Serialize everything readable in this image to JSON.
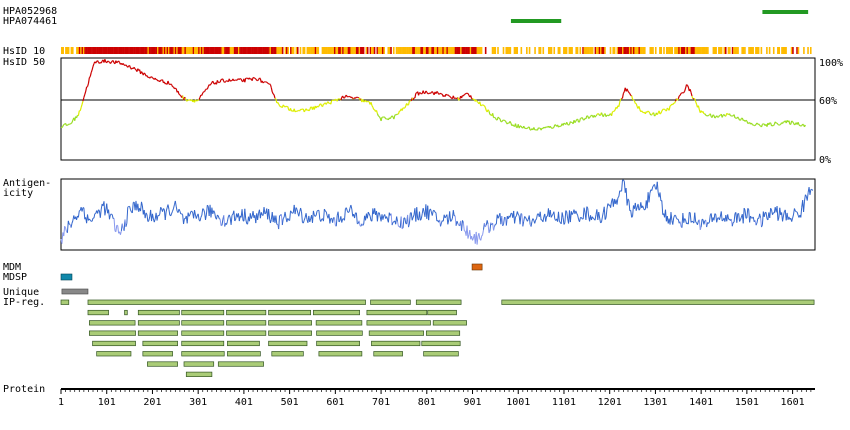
{
  "labels": {
    "antibody_1": "HPA052968",
    "antibody_2": "HPA074461",
    "hsid10": "HsID 10",
    "hsid50": "HsID 50",
    "antigenicity_1": "Antigen-",
    "antigenicity_2": "icity",
    "mdm": "MDM",
    "mdsp": "MDSP",
    "unique": "Unique",
    "ipreg": "IP-reg.",
    "protein": "Protein"
  },
  "colors": {
    "antibody": "#229922",
    "hsid_high": "#cc0000",
    "hsid_mid": "#ddee00",
    "hsid_low": "#99dd22",
    "hsid_orange": "#ffbb00",
    "antigenicity": "#3366cc",
    "antigenicity_light": "#8899ee",
    "mdm": "#dd6611",
    "mdsp": "#1188aa",
    "unique": "#888888",
    "ipreg_fill": "#aacc77",
    "ipreg_stroke": "#335522"
  },
  "chart_data": {
    "type": "line",
    "protein_length": 1650,
    "x_ticks": [
      1,
      101,
      201,
      301,
      401,
      501,
      601,
      701,
      801,
      901,
      1001,
      1101,
      1201,
      1301,
      1401,
      1501,
      1601
    ],
    "hsid_ylim": [
      0,
      100
    ],
    "hsid_threshold": 60,
    "hsid_axis_labels": [
      "100%",
      "60%",
      "0%"
    ],
    "antibody_regions": [
      {
        "name": "HPA052968",
        "start": 1535,
        "end": 1635
      },
      {
        "name": "HPA074461",
        "start": 985,
        "end": 1095
      }
    ],
    "hsid50_profile": [
      [
        1,
        33
      ],
      [
        20,
        35
      ],
      [
        40,
        45
      ],
      [
        60,
        75
      ],
      [
        75,
        96
      ],
      [
        100,
        97
      ],
      [
        130,
        95
      ],
      [
        160,
        90
      ],
      [
        200,
        80
      ],
      [
        240,
        75
      ],
      [
        260,
        65
      ],
      [
        270,
        60
      ],
      [
        300,
        58
      ],
      [
        330,
        75
      ],
      [
        360,
        78
      ],
      [
        400,
        78
      ],
      [
        430,
        80
      ],
      [
        460,
        72
      ],
      [
        475,
        55
      ],
      [
        500,
        50
      ],
      [
        530,
        48
      ],
      [
        560,
        52
      ],
      [
        580,
        55
      ],
      [
        600,
        58
      ],
      [
        620,
        62
      ],
      [
        650,
        60
      ],
      [
        680,
        55
      ],
      [
        700,
        40
      ],
      [
        730,
        42
      ],
      [
        760,
        55
      ],
      [
        780,
        65
      ],
      [
        800,
        67
      ],
      [
        830,
        65
      ],
      [
        850,
        62
      ],
      [
        870,
        60
      ],
      [
        890,
        65
      ],
      [
        910,
        58
      ],
      [
        930,
        50
      ],
      [
        950,
        42
      ],
      [
        970,
        38
      ],
      [
        990,
        35
      ],
      [
        1010,
        32
      ],
      [
        1040,
        30
      ],
      [
        1070,
        32
      ],
      [
        1100,
        35
      ],
      [
        1130,
        38
      ],
      [
        1160,
        43
      ],
      [
        1180,
        45
      ],
      [
        1200,
        43
      ],
      [
        1220,
        52
      ],
      [
        1235,
        70
      ],
      [
        1250,
        62
      ],
      [
        1270,
        47
      ],
      [
        1300,
        45
      ],
      [
        1330,
        50
      ],
      [
        1360,
        65
      ],
      [
        1370,
        74
      ],
      [
        1385,
        60
      ],
      [
        1400,
        47
      ],
      [
        1430,
        42
      ],
      [
        1460,
        45
      ],
      [
        1480,
        42
      ],
      [
        1510,
        35
      ],
      [
        1540,
        34
      ],
      [
        1570,
        36
      ],
      [
        1590,
        37
      ],
      [
        1610,
        36
      ],
      [
        1630,
        34
      ]
    ],
    "antigenicity_profile": [
      [
        1,
        10
      ],
      [
        10,
        25
      ],
      [
        30,
        45
      ],
      [
        50,
        60
      ],
      [
        60,
        40
      ],
      [
        80,
        50
      ],
      [
        95,
        62
      ],
      [
        110,
        45
      ],
      [
        130,
        20
      ],
      [
        150,
        55
      ],
      [
        170,
        65
      ],
      [
        190,
        45
      ],
      [
        220,
        50
      ],
      [
        250,
        60
      ],
      [
        270,
        40
      ],
      [
        300,
        48
      ],
      [
        330,
        55
      ],
      [
        360,
        40
      ],
      [
        390,
        50
      ],
      [
        420,
        45
      ],
      [
        450,
        52
      ],
      [
        480,
        38
      ],
      [
        510,
        55
      ],
      [
        540,
        45
      ],
      [
        570,
        50
      ],
      [
        600,
        40
      ],
      [
        630,
        55
      ],
      [
        660,
        42
      ],
      [
        690,
        50
      ],
      [
        720,
        45
      ],
      [
        750,
        38
      ],
      [
        780,
        50
      ],
      [
        800,
        55
      ],
      [
        830,
        40
      ],
      [
        860,
        48
      ],
      [
        890,
        25
      ],
      [
        910,
        15
      ],
      [
        930,
        30
      ],
      [
        960,
        42
      ],
      [
        1000,
        45
      ],
      [
        1030,
        38
      ],
      [
        1060,
        50
      ],
      [
        1090,
        44
      ],
      [
        1120,
        48
      ],
      [
        1150,
        52
      ],
      [
        1180,
        45
      ],
      [
        1200,
        60
      ],
      [
        1215,
        70
      ],
      [
        1230,
        98
      ],
      [
        1245,
        55
      ],
      [
        1270,
        60
      ],
      [
        1290,
        75
      ],
      [
        1305,
        92
      ],
      [
        1320,
        50
      ],
      [
        1350,
        40
      ],
      [
        1380,
        45
      ],
      [
        1410,
        35
      ],
      [
        1440,
        48
      ],
      [
        1470,
        42
      ],
      [
        1500,
        50
      ],
      [
        1530,
        40
      ],
      [
        1560,
        55
      ],
      [
        1590,
        45
      ],
      [
        1620,
        55
      ],
      [
        1635,
        80
      ],
      [
        1640,
        88
      ]
    ],
    "mdm_regions": [
      [
        900,
        922
      ]
    ],
    "mdsp_regions": [
      [
        1,
        25
      ]
    ],
    "unique_regions": [
      [
        3,
        60
      ]
    ],
    "ipreg_rows": [
      [
        [
          1,
          18
        ],
        [
          60,
          667
        ],
        [
          678,
          765
        ],
        [
          778,
          876
        ],
        [
          965,
          1648
        ]
      ],
      [
        [
          60,
          105
        ],
        [
          140,
          146
        ],
        [
          170,
          260
        ],
        [
          265,
          357
        ],
        [
          363,
          449
        ],
        [
          455,
          547
        ],
        [
          553,
          654
        ],
        [
          670,
          801
        ],
        [
          803,
          866
        ]
      ],
      [
        [
          63,
          163
        ],
        [
          170,
          260
        ],
        [
          265,
          357
        ],
        [
          363,
          449
        ],
        [
          455,
          549
        ],
        [
          559,
          659
        ],
        [
          670,
          809
        ],
        [
          815,
          888
        ]
      ],
      [
        [
          63,
          164
        ],
        [
          170,
          256
        ],
        [
          265,
          357
        ],
        [
          363,
          449
        ],
        [
          455,
          549
        ],
        [
          560,
          660
        ],
        [
          675,
          794
        ],
        [
          800,
          873
        ]
      ],
      [
        [
          70,
          164
        ],
        [
          180,
          256
        ],
        [
          265,
          357
        ],
        [
          365,
          435
        ],
        [
          455,
          539
        ],
        [
          560,
          654
        ],
        [
          680,
          786
        ],
        [
          790,
          874
        ]
      ],
      [
        [
          79,
          154
        ],
        [
          180,
          245
        ],
        [
          265,
          358
        ],
        [
          365,
          437
        ],
        [
          462,
          531
        ],
        [
          565,
          659
        ],
        [
          685,
          748
        ],
        [
          794,
          870
        ]
      ],
      [
        [
          190,
          256
        ],
        [
          270,
          335
        ],
        [
          345,
          444
        ]
      ],
      [
        [
          275,
          331
        ]
      ]
    ]
  }
}
